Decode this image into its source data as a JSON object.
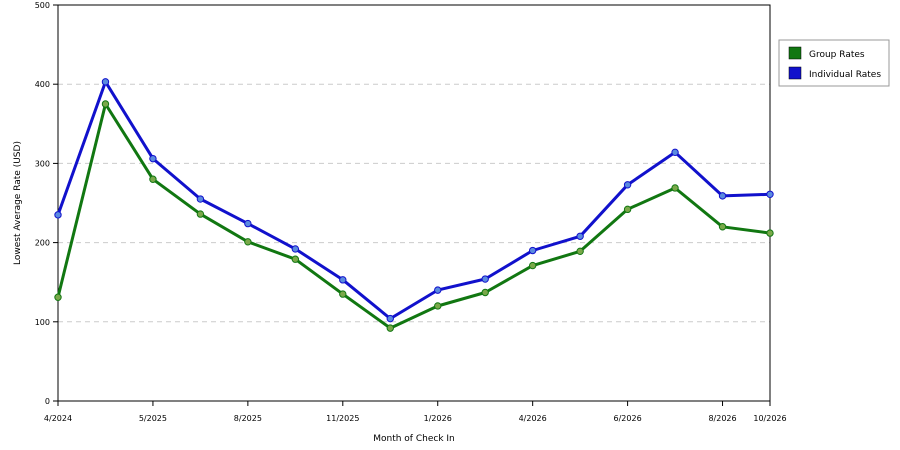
{
  "chart_data": {
    "type": "line",
    "xlabel": "Month of Check In",
    "ylabel": "Lowest Average Rate (USD)",
    "ylim": [
      0,
      500
    ],
    "yticks": [
      0,
      100,
      200,
      300,
      400,
      500
    ],
    "grid": "horizontal dashed",
    "legend_position": "right",
    "x_tick_labels": [
      {
        "label": "4/2024",
        "index": 0
      },
      {
        "label": "5/2025",
        "index": 2
      },
      {
        "label": "8/2025",
        "index": 4
      },
      {
        "label": "11/2025",
        "index": 6
      },
      {
        "label": "1/2026",
        "index": 8
      },
      {
        "label": "4/2026",
        "index": 10
      },
      {
        "label": "6/2026",
        "index": 12
      },
      {
        "label": "8/2026",
        "index": 14
      },
      {
        "label": "10/2026",
        "index": 15
      }
    ],
    "point_count": 16,
    "series": [
      {
        "name": "Group Rates",
        "color": "#117711",
        "marker_color": "#7aa84a",
        "values": [
          131,
          375,
          280,
          236,
          201,
          179,
          135,
          92,
          120,
          137,
          171,
          189,
          242,
          269,
          220,
          212
        ]
      },
      {
        "name": "Individual Rates",
        "color": "#1111cc",
        "marker_color": "#5a8adf",
        "values": [
          235,
          403,
          306,
          255,
          224,
          192,
          153,
          104,
          140,
          154,
          190,
          208,
          273,
          314,
          259,
          261
        ]
      }
    ]
  }
}
